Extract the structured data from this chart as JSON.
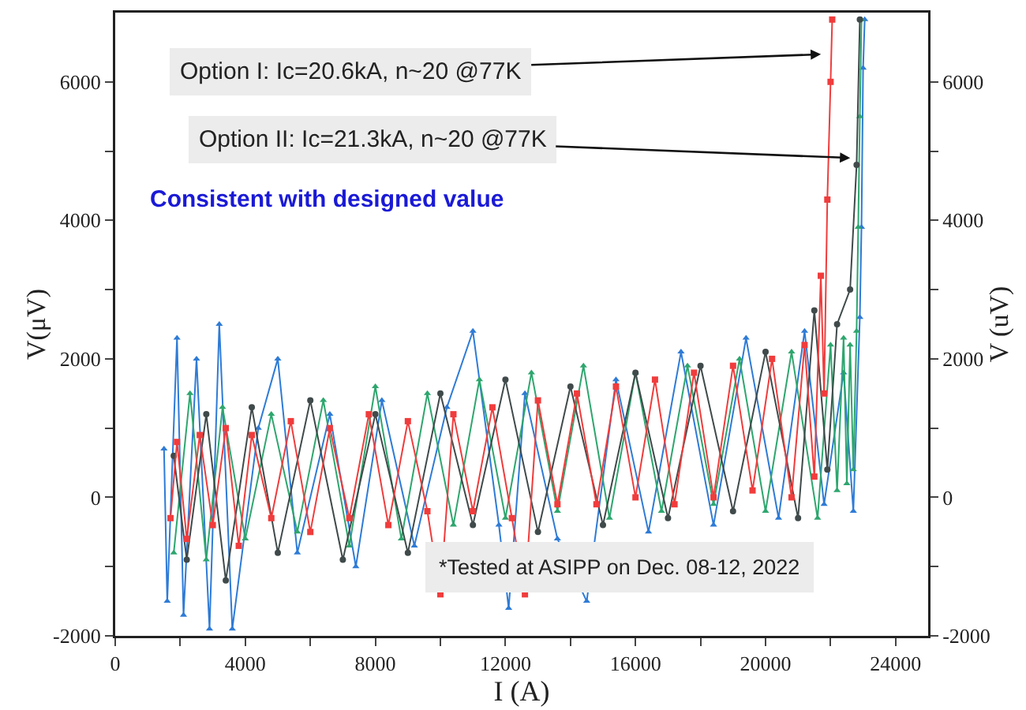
{
  "chart_data": {
    "type": "line",
    "xlabel": "I (A)",
    "ylabel": "V(μV)",
    "y2label": "V (uV)",
    "xlim": [
      0,
      25000
    ],
    "xticks": [
      0,
      {
        "value": 2000,
        "label": null
      },
      4000,
      {
        "value": 6000,
        "label": null
      },
      8000,
      {
        "value": 10000,
        "label": null
      },
      12000,
      {
        "value": 14000,
        "label": null
      },
      16000,
      {
        "value": 18000,
        "label": null
      },
      20000,
      {
        "value": 22000,
        "label": null
      },
      24000
    ],
    "ylim": [
      -2000,
      7000
    ],
    "yticks": [
      -2000,
      {
        "value": -1000,
        "label": null
      },
      0,
      {
        "value": 1000,
        "label": null
      },
      2000,
      {
        "value": 3000,
        "label": null
      },
      4000,
      {
        "value": 5000,
        "label": null
      },
      6000
    ],
    "y2lim": [
      -2000,
      7000
    ],
    "y2ticks": [
      -2000,
      {
        "value": -1000,
        "label": null
      },
      0,
      {
        "value": 1000,
        "label": null
      },
      2000,
      {
        "value": 3000,
        "label": null
      },
      4000,
      {
        "value": 5000,
        "label": null
      },
      6000
    ],
    "line_style": "solid",
    "series": [
      {
        "color": "#2e7bd6",
        "marker": "triangle",
        "x": [
          1500,
          1600,
          1900,
          2100,
          2500,
          2900,
          3200,
          3600,
          4400,
          5000,
          5600,
          6600,
          7400,
          8200,
          9200,
          10200,
          11000,
          11800,
          12100,
          12600,
          13600,
          14500,
          15400,
          16400,
          17400,
          18400,
          19400,
          20400,
          21200,
          21800,
          22400,
          22700,
          22900,
          22950,
          23000,
          23050
        ],
        "values": [
          700,
          -1500,
          2300,
          -1700,
          2000,
          -1900,
          2500,
          -1900,
          1000,
          2000,
          -800,
          1200,
          -1000,
          1400,
          -700,
          1300,
          2400,
          -400,
          -1600,
          1500,
          -600,
          -1500,
          1700,
          -500,
          2100,
          -400,
          2300,
          -300,
          2400,
          -100,
          1800,
          -200,
          2600,
          3900,
          6200,
          6900
        ]
      },
      {
        "color": "#2ea66e",
        "marker": "triangle",
        "x": [
          1800,
          2300,
          2800,
          3300,
          4000,
          4800,
          5600,
          6400,
          7200,
          8000,
          8800,
          9600,
          10400,
          11200,
          12000,
          12800,
          13600,
          14400,
          15200,
          16000,
          16800,
          17600,
          18400,
          19200,
          20000,
          20800,
          21600,
          22000,
          22200,
          22400,
          22500,
          22600,
          22700,
          22800,
          22850,
          22900,
          22950
        ],
        "values": [
          -800,
          1500,
          -900,
          1300,
          -600,
          1200,
          -500,
          1400,
          -700,
          1600,
          -600,
          1500,
          -400,
          1700,
          -300,
          1800,
          -200,
          1900,
          -300,
          1800,
          -200,
          1900,
          -100,
          2000,
          -200,
          2100,
          -300,
          2200,
          100,
          2300,
          200,
          2200,
          400,
          2400,
          3900,
          5500,
          6900
        ]
      },
      {
        "color": "#404a4a",
        "marker": "circle",
        "x": [
          1800,
          2200,
          2800,
          3400,
          4200,
          5000,
          6000,
          7000,
          8000,
          9000,
          10000,
          11000,
          12000,
          13000,
          14000,
          15000,
          16000,
          17000,
          18000,
          19000,
          20000,
          21000,
          21500,
          21900,
          22200,
          22600,
          22800,
          22900
        ],
        "values": [
          600,
          -900,
          1200,
          -1200,
          1300,
          -800,
          1400,
          -900,
          1200,
          -800,
          1500,
          -400,
          1700,
          -500,
          1600,
          -400,
          1800,
          -300,
          1900,
          -200,
          2100,
          -300,
          2700,
          400,
          2500,
          3000,
          4800,
          6900
        ]
      },
      {
        "color": "#f03c3c",
        "marker": "square",
        "x": [
          1700,
          1900,
          2200,
          2600,
          3000,
          3400,
          3800,
          4200,
          4800,
          5400,
          6000,
          6600,
          7200,
          7800,
          8400,
          9000,
          9600,
          10000,
          10400,
          11000,
          11600,
          12200,
          12600,
          13000,
          13600,
          14200,
          14800,
          15400,
          16000,
          16600,
          17200,
          17800,
          18400,
          19000,
          19600,
          20200,
          20800,
          21200,
          21500,
          21700,
          21800,
          21900,
          22000,
          22050
        ],
        "values": [
          -300,
          800,
          -600,
          900,
          -400,
          1000,
          -700,
          900,
          -300,
          1100,
          -500,
          1000,
          -300,
          1200,
          -400,
          1100,
          -200,
          -1400,
          1200,
          -200,
          1300,
          -300,
          -1400,
          1400,
          -100,
          1500,
          -100,
          1600,
          0,
          1700,
          -100,
          1800,
          0,
          1900,
          100,
          2000,
          0,
          2200,
          300,
          3200,
          1500,
          4300,
          6000,
          6900
        ]
      }
    ],
    "annotations": [
      {
        "text": "Option I: Ic=20.6kA, n~20 @77K",
        "x": 21800,
        "y": 6400
      },
      {
        "text": "Option II: Ic=21.3kA, n~20 @77K",
        "x": 22700,
        "y": 4900
      },
      "Consistent with designed value",
      "*Tested at ASIPP on Dec. 08-12, 2022"
    ]
  }
}
